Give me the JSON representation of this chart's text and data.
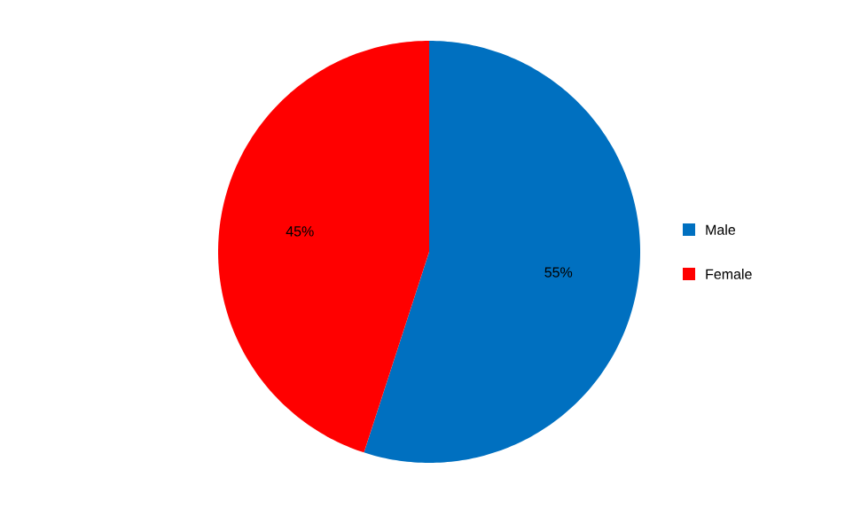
{
  "chart_data": {
    "type": "pie",
    "categories": [
      "Male",
      "Female"
    ],
    "values": [
      55,
      45
    ],
    "colors": [
      "#0070c0",
      "#ff0000"
    ],
    "value_labels": [
      "55%",
      "45%"
    ],
    "legend": "right"
  }
}
